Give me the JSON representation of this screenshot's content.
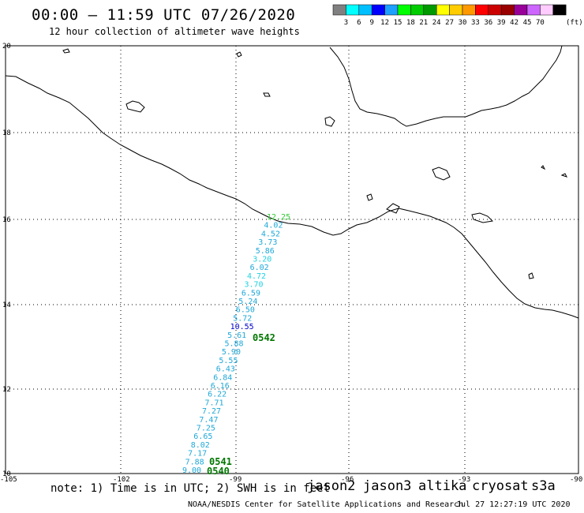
{
  "header": {
    "title": "00:00 – 11:59 UTC 07/26/2020",
    "subtitle": "12 hour collection of altimeter wave heights"
  },
  "legend": {
    "colors": [
      "#808080",
      "#00ffff",
      "#00bfff",
      "#0000ff",
      "#1ea0ff",
      "#00ff00",
      "#00cc00",
      "#009900",
      "#ffff00",
      "#ffcc00",
      "#ff9900",
      "#ff0000",
      "#cc0000",
      "#990000",
      "#990099",
      "#cc66ff",
      "#ffccff",
      "#000000"
    ],
    "labels": [
      "3",
      "6",
      "9",
      "12",
      "15",
      "18",
      "21",
      "24",
      "27",
      "30",
      "33",
      "36",
      "39",
      "42",
      "45",
      "70"
    ],
    "unit": "(ft)"
  },
  "axes": {
    "lon_labels": [
      "-105",
      "-102",
      "-99",
      "-96",
      "-93",
      "-90"
    ],
    "lat_labels": [
      "20",
      "18",
      "16",
      "14",
      "12",
      "10"
    ]
  },
  "track": {
    "wave_heights": [
      "12.25",
      "4.02",
      "4.52",
      "3.73",
      "5.86",
      "3.20",
      "6.02",
      "4.72",
      "3.70",
      "6.59",
      "5.24",
      "6.50",
      "5.72",
      "10.55",
      "5.61",
      "5.88",
      "5.90",
      "5.55",
      "6.43",
      "6.84",
      "6.16",
      "6.22",
      "7.71",
      "7.27",
      "7.47",
      "7.25",
      "6.65",
      "8.02",
      "7.17",
      "7.88",
      "9.00"
    ],
    "colors": [
      "#33cc33",
      "#1ea8d8",
      "#1ea8d8",
      "#1ea8d8",
      "#1ea8d8",
      "#20d0e0",
      "#1ea8d8",
      "#20d0e0",
      "#20d0e0",
      "#1ea8d8",
      "#1ea8d8",
      "#1ea8d8",
      "#1ea8d8",
      "#0000cc",
      "#1ea8d8",
      "#1ea8d8",
      "#1ea8d8",
      "#1ea8d8",
      "#1ea8d8",
      "#1ea8d8",
      "#1ea8d8",
      "#1ea8d8",
      "#1ea8d8",
      "#1ea8d8",
      "#1ea8d8",
      "#1ea8d8",
      "#1ea8d8",
      "#1ea8d8",
      "#1ea8d8",
      "#1ea8d8",
      "#1ea8d8"
    ],
    "time_labels": [
      "0542",
      "0541",
      "0540"
    ]
  },
  "footer": {
    "note": "note: 1) Time is in UTC; 2) SWH is in feet",
    "satellites": [
      {
        "name": "jason2",
        "color": "#0000cc"
      },
      {
        "name": "jason3",
        "color": "#009900"
      },
      {
        "name": "altika",
        "color": "#ff9900"
      },
      {
        "name": "cryosat",
        "color": "#cc0000"
      },
      {
        "name": "s3a",
        "color": "#990000"
      }
    ],
    "credit": "NOAA/NESDIS Center for Satellite Applications and Research",
    "timestamp": "Jul 27 12:27:19 UTC 2020"
  }
}
